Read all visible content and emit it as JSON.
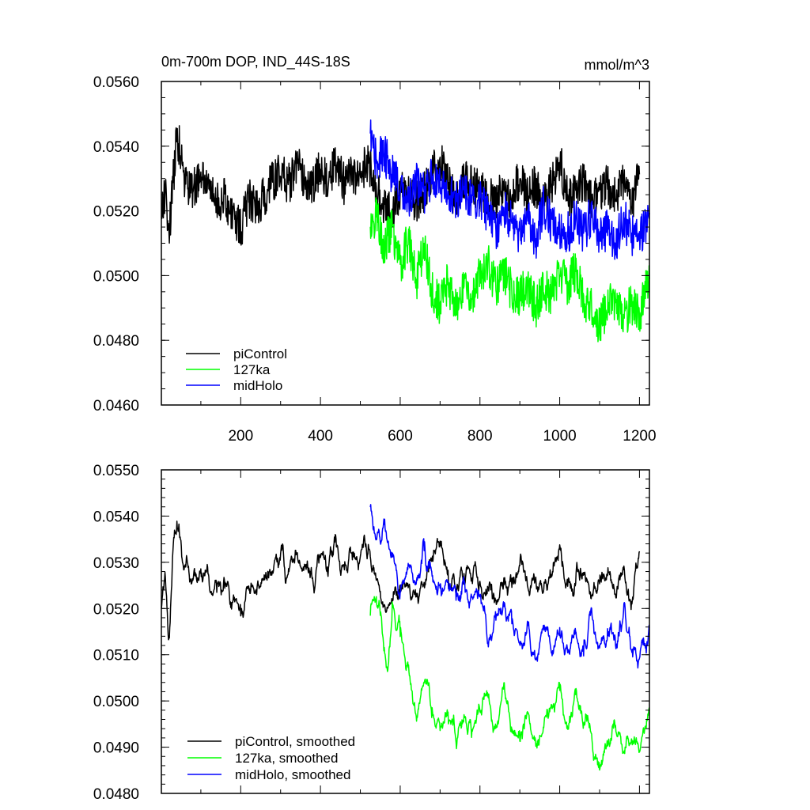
{
  "chart_data": [
    {
      "type": "line",
      "title": "0m-700m DOP, IND_44S-18S",
      "units": "mmol/m^3",
      "xlabel": "",
      "ylabel": "",
      "xlim": [
        1,
        1225
      ],
      "ylim": [
        0.046,
        0.056
      ],
      "xticks": [
        200,
        400,
        600,
        800,
        1000,
        1200
      ],
      "xtick_labels": [
        "200",
        "400",
        "600",
        "800",
        "1000",
        "1200"
      ],
      "yticks": [
        0.046,
        0.048,
        0.05,
        0.052,
        0.054,
        0.056
      ],
      "ytick_labels": [
        "0.0460",
        "0.0480",
        "0.0500",
        "0.0520",
        "0.0540",
        "0.0560"
      ],
      "legend_position": "bottom-left",
      "series": [
        {
          "name": "piControl",
          "color": "#000000",
          "x": [
            1,
            10,
            20,
            30,
            40,
            50,
            60,
            80,
            100,
            120,
            140,
            160,
            180,
            200,
            220,
            240,
            260,
            280,
            300,
            320,
            340,
            360,
            380,
            400,
            420,
            440,
            460,
            480,
            500,
            520,
            540,
            560,
            580,
            600,
            620,
            640,
            660,
            680,
            700,
            720,
            740,
            760,
            780,
            800,
            820,
            840,
            860,
            880,
            900,
            920,
            940,
            960,
            980,
            1000,
            1020,
            1040,
            1060,
            1080,
            1100,
            1120,
            1140,
            1160,
            1180,
            1200
          ],
          "values": [
            0.0518,
            0.0526,
            0.0513,
            0.0528,
            0.0543,
            0.0538,
            0.0529,
            0.0526,
            0.0531,
            0.0527,
            0.0523,
            0.0524,
            0.0519,
            0.0514,
            0.0524,
            0.0521,
            0.0525,
            0.0529,
            0.0532,
            0.0528,
            0.0534,
            0.053,
            0.0527,
            0.0533,
            0.0529,
            0.0535,
            0.0528,
            0.0531,
            0.0532,
            0.0535,
            0.0527,
            0.0522,
            0.0519,
            0.0526,
            0.0525,
            0.0523,
            0.0526,
            0.0532,
            0.0536,
            0.0528,
            0.0523,
            0.0529,
            0.0528,
            0.0526,
            0.0525,
            0.0522,
            0.0528,
            0.0523,
            0.0531,
            0.0524,
            0.0528,
            0.0523,
            0.0528,
            0.0536,
            0.0524,
            0.0525,
            0.0529,
            0.0523,
            0.0526,
            0.0528,
            0.0524,
            0.0529,
            0.0522,
            0.0532
          ]
        },
        {
          "name": "127ka",
          "color": "#00ff00",
          "x": [
            525,
            540,
            560,
            580,
            600,
            620,
            640,
            660,
            680,
            700,
            720,
            740,
            760,
            780,
            800,
            820,
            840,
            860,
            880,
            900,
            920,
            940,
            960,
            980,
            1000,
            1020,
            1040,
            1060,
            1080,
            1100,
            1120,
            1140,
            1160,
            1180,
            1200,
            1225
          ],
          "values": [
            0.0515,
            0.0519,
            0.0509,
            0.0515,
            0.0503,
            0.0511,
            0.0498,
            0.0509,
            0.0495,
            0.0491,
            0.0498,
            0.0489,
            0.0498,
            0.0492,
            0.0501,
            0.0504,
            0.0496,
            0.0501,
            0.0495,
            0.0493,
            0.0498,
            0.049,
            0.0496,
            0.0494,
            0.0501,
            0.0497,
            0.0502,
            0.0493,
            0.049,
            0.0485,
            0.049,
            0.0493,
            0.0487,
            0.0491,
            0.0488,
            0.05
          ]
        },
        {
          "name": "midHolo",
          "color": "#0000ff",
          "x": [
            525,
            540,
            560,
            580,
            600,
            620,
            640,
            660,
            680,
            700,
            720,
            740,
            760,
            780,
            800,
            820,
            840,
            860,
            880,
            900,
            920,
            940,
            960,
            980,
            1000,
            1020,
            1040,
            1060,
            1080,
            1100,
            1120,
            1140,
            1160,
            1180,
            1200,
            1225
          ],
          "values": [
            0.0543,
            0.0535,
            0.0538,
            0.0531,
            0.0527,
            0.0522,
            0.0529,
            0.0525,
            0.0531,
            0.0528,
            0.0525,
            0.0524,
            0.0526,
            0.0523,
            0.0525,
            0.0518,
            0.0514,
            0.0521,
            0.0516,
            0.0513,
            0.0518,
            0.0511,
            0.0522,
            0.0516,
            0.0514,
            0.0513,
            0.0518,
            0.0513,
            0.0519,
            0.0512,
            0.0514,
            0.051,
            0.0518,
            0.0512,
            0.0512,
            0.0518
          ]
        }
      ],
      "legend": [
        "piControl",
        "127ka",
        "midHolo"
      ]
    },
    {
      "type": "line",
      "title": "",
      "xlabel": "",
      "ylabel": "",
      "xlim": [
        1,
        1225
      ],
      "ylim": [
        0.048,
        0.055
      ],
      "xticks": [
        200,
        400,
        600,
        800,
        1000,
        1200
      ],
      "yticks": [
        0.048,
        0.049,
        0.05,
        0.051,
        0.052,
        0.053,
        0.054,
        0.055
      ],
      "ytick_labels": [
        "0.0480",
        "0.0490",
        "0.0500",
        "0.0510",
        "0.0520",
        "0.0530",
        "0.0540",
        "0.0550"
      ],
      "legend_position": "bottom-left",
      "series": [
        {
          "name": "piControl, smoothed",
          "color": "#000000",
          "x": [
            1,
            10,
            20,
            30,
            40,
            50,
            60,
            70,
            80,
            100,
            120,
            140,
            160,
            180,
            200,
            220,
            240,
            260,
            280,
            300,
            320,
            340,
            360,
            380,
            400,
            420,
            440,
            460,
            480,
            500,
            520,
            540,
            560,
            580,
            600,
            620,
            640,
            660,
            680,
            700,
            720,
            740,
            760,
            780,
            800,
            820,
            840,
            860,
            880,
            900,
            920,
            940,
            960,
            980,
            1000,
            1020,
            1040,
            1060,
            1080,
            1100,
            1120,
            1140,
            1160,
            1180,
            1200
          ],
          "values": [
            0.052,
            0.0528,
            0.0514,
            0.0532,
            0.0539,
            0.0535,
            0.0529,
            0.0528,
            0.0526,
            0.0529,
            0.0527,
            0.0523,
            0.0524,
            0.0521,
            0.0518,
            0.0525,
            0.0523,
            0.0526,
            0.0528,
            0.0532,
            0.0529,
            0.0532,
            0.053,
            0.0527,
            0.0531,
            0.0529,
            0.0533,
            0.0528,
            0.053,
            0.0531,
            0.0534,
            0.0526,
            0.0521,
            0.0522,
            0.0525,
            0.0524,
            0.0523,
            0.0526,
            0.0531,
            0.0535,
            0.0529,
            0.0524,
            0.0528,
            0.0527,
            0.0526,
            0.0524,
            0.0522,
            0.0527,
            0.0524,
            0.0529,
            0.0525,
            0.0527,
            0.0524,
            0.0527,
            0.0534,
            0.0524,
            0.0525,
            0.0528,
            0.0523,
            0.0525,
            0.0527,
            0.0523,
            0.0528,
            0.0522,
            0.0532
          ]
        },
        {
          "name": "127ka, smoothed",
          "color": "#00ff00",
          "x": [
            525,
            540,
            560,
            570,
            580,
            600,
            620,
            640,
            660,
            680,
            700,
            720,
            740,
            760,
            780,
            800,
            820,
            840,
            860,
            880,
            900,
            920,
            940,
            960,
            980,
            1000,
            1020,
            1040,
            1060,
            1080,
            1100,
            1120,
            1140,
            1160,
            1180,
            1200,
            1225
          ],
          "values": [
            0.0518,
            0.0523,
            0.0512,
            0.0508,
            0.0522,
            0.0513,
            0.0507,
            0.0497,
            0.0504,
            0.0499,
            0.0493,
            0.0498,
            0.0491,
            0.0497,
            0.0494,
            0.0498,
            0.0501,
            0.0494,
            0.0504,
            0.0493,
            0.0491,
            0.0497,
            0.049,
            0.0494,
            0.0499,
            0.0502,
            0.0494,
            0.0501,
            0.0495,
            0.0493,
            0.0485,
            0.049,
            0.0495,
            0.0489,
            0.0492,
            0.0489,
            0.0498
          ]
        },
        {
          "name": "midHolo, smoothed",
          "color": "#0000ff",
          "x": [
            525,
            540,
            560,
            580,
            600,
            620,
            640,
            660,
            680,
            700,
            720,
            740,
            760,
            780,
            800,
            820,
            840,
            860,
            880,
            900,
            920,
            940,
            960,
            980,
            1000,
            1020,
            1040,
            1060,
            1080,
            1100,
            1120,
            1140,
            1160,
            1180,
            1200,
            1225
          ],
          "values": [
            0.0541,
            0.0535,
            0.0538,
            0.0531,
            0.0524,
            0.053,
            0.0525,
            0.0532,
            0.0527,
            0.0524,
            0.0526,
            0.0521,
            0.0525,
            0.0522,
            0.0523,
            0.0513,
            0.0517,
            0.052,
            0.0516,
            0.0512,
            0.0516,
            0.0509,
            0.0515,
            0.0511,
            0.0516,
            0.051,
            0.0515,
            0.0509,
            0.052,
            0.0511,
            0.0516,
            0.0512,
            0.0519,
            0.0511,
            0.0509,
            0.0516
          ]
        }
      ],
      "legend": [
        "piControl, smoothed",
        "127ka, smoothed",
        "midHolo, smoothed"
      ]
    }
  ]
}
